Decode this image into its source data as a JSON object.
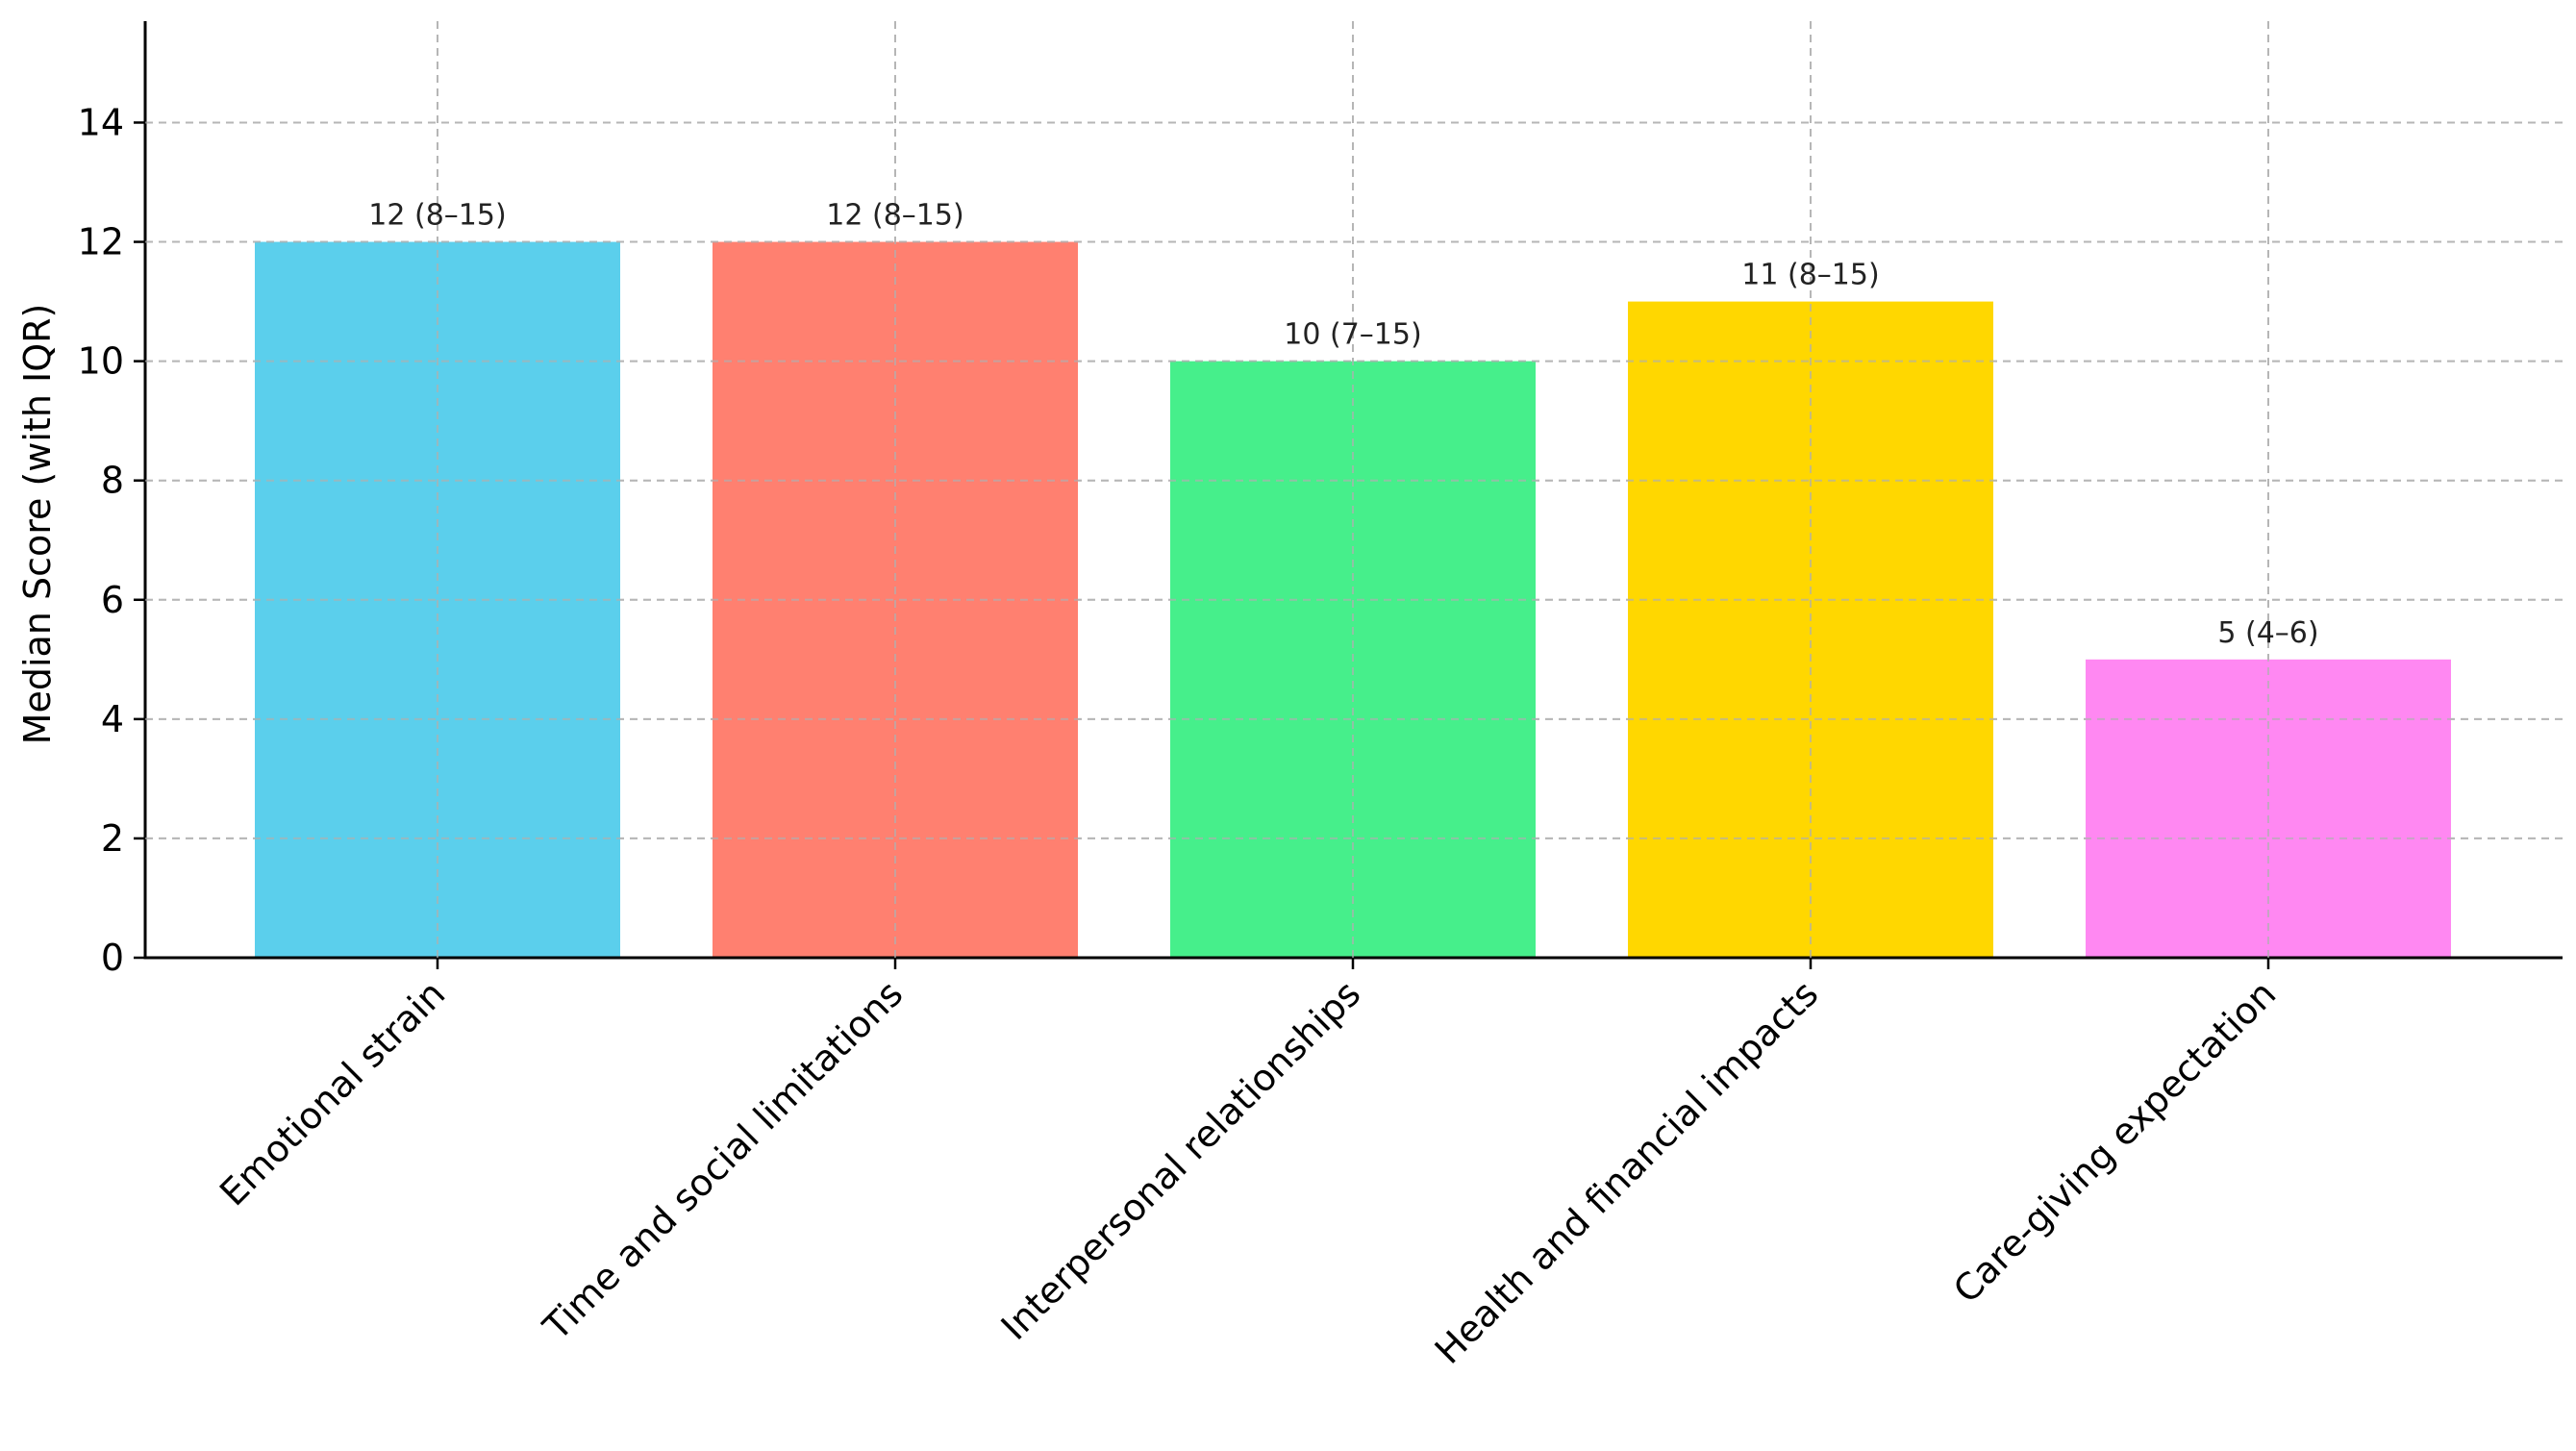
{
  "chart_data": {
    "type": "bar",
    "title": "",
    "xlabel": "",
    "ylabel": "Median Score (with IQR)",
    "categories": [
      "Emotional strain",
      "Time and social limitations",
      "Interpersonal relationships",
      "Health and financial impacts",
      "Care-giving expectation"
    ],
    "values": [
      12,
      12,
      10,
      11,
      5
    ],
    "value_labels": [
      "12 (8–15)",
      "12 (8–15)",
      "10 (7–15)",
      "11 (8–15)",
      "5 (4–6)"
    ],
    "colors": [
      "#5bcfec",
      "#ff8070",
      "#46ef8b",
      "#ffd700",
      "#ff88f2"
    ],
    "ylim": [
      0,
      15.7
    ],
    "yticks": [
      0,
      2,
      4,
      6,
      8,
      10,
      12,
      14
    ],
    "grid": true,
    "x_tick_rotation": 45
  }
}
